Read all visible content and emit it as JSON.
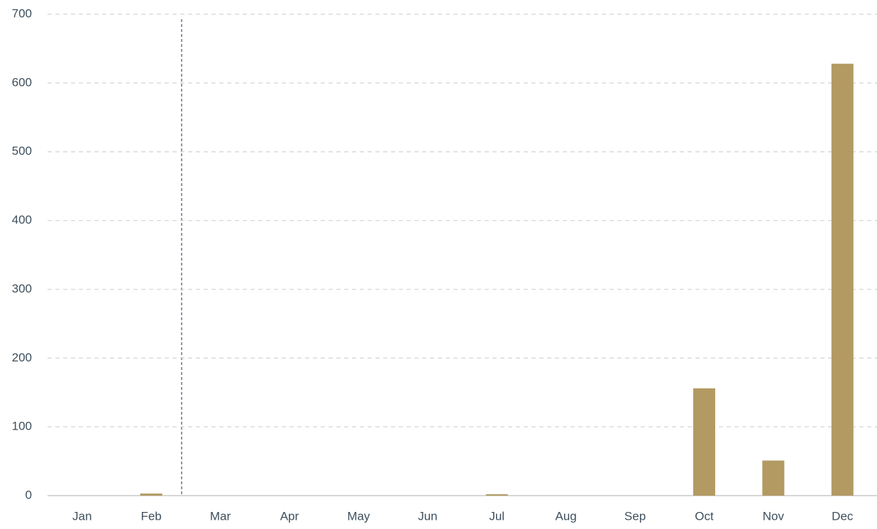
{
  "chart_data": {
    "type": "bar",
    "categories": [
      "Jan",
      "Feb",
      "Mar",
      "Apr",
      "May",
      "Jun",
      "Jul",
      "Aug",
      "Sep",
      "Oct",
      "Nov",
      "Dec"
    ],
    "values": [
      0,
      3,
      0,
      0,
      0,
      0,
      2,
      0,
      0,
      156,
      51,
      628
    ],
    "color": "#b29a62",
    "ylim": [
      0,
      700
    ],
    "yticks": [
      0,
      100,
      200,
      300,
      400,
      500,
      600,
      700
    ],
    "grid": true
  }
}
